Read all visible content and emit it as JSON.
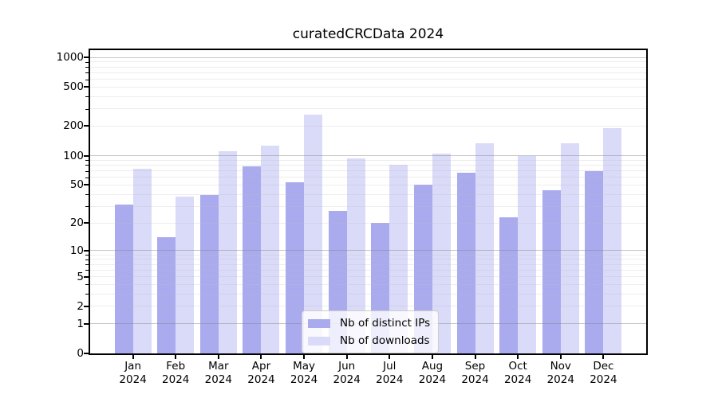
{
  "chart_data": {
    "type": "bar",
    "title": "curatedCRCData 2024",
    "categories": [
      "Jan",
      "Feb",
      "Mar",
      "Apr",
      "May",
      "Jun",
      "Jul",
      "Aug",
      "Sep",
      "Oct",
      "Nov",
      "Dec"
    ],
    "category_year": "2024",
    "series": [
      {
        "name": "Nb of distinct IPs",
        "color": "#aaaaef",
        "values": [
          31,
          14,
          39,
          78,
          53,
          27,
          20,
          50,
          67,
          23,
          44,
          70
        ]
      },
      {
        "name": "Nb of downloads",
        "color": "#dadaf9",
        "values": [
          73,
          38,
          110,
          127,
          264,
          94,
          80,
          104,
          135,
          100,
          135,
          192
        ]
      }
    ],
    "yscale": "log1p",
    "yticks": [
      0,
      1,
      2,
      5,
      10,
      20,
      50,
      100,
      200,
      500,
      1000
    ],
    "ylim": [
      0,
      1183
    ],
    "grid": "both",
    "legend_position": "lower center",
    "axis_color": "#000000",
    "major_grid_color": "#c3c3c3",
    "minor_grid_color": "#ececec"
  }
}
